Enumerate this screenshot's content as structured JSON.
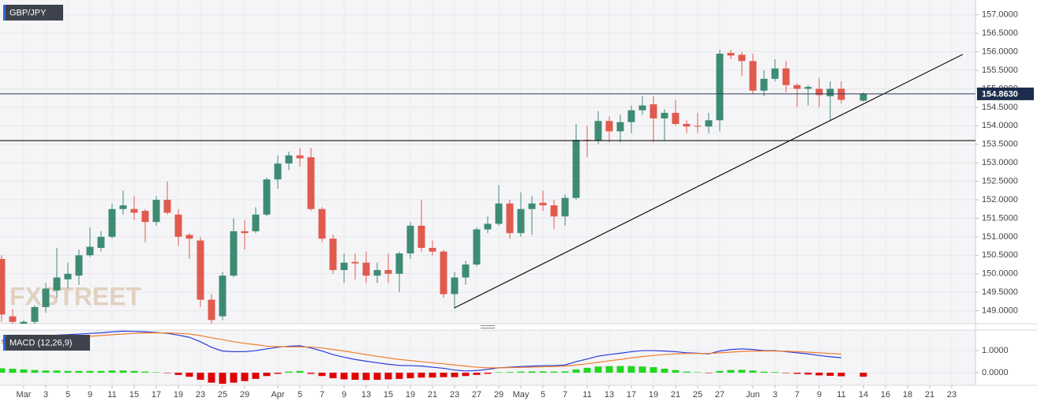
{
  "chart_data": [
    {
      "type": "candlestick",
      "title": "GBP/JPY",
      "watermark": "FXSTREET",
      "categories": [
        null,
        null,
        "Mar",
        null,
        "3",
        null,
        "5",
        null,
        "9",
        null,
        "11",
        null,
        "15",
        null,
        "17",
        null,
        "19",
        null,
        "23",
        null,
        "25",
        null,
        "29",
        null,
        null,
        "Apr",
        null,
        "5",
        null,
        "7",
        null,
        "9",
        null,
        "13",
        null,
        "15",
        null,
        "19",
        null,
        "21",
        null,
        "23",
        null,
        "27",
        null,
        "29",
        null,
        "May",
        null,
        "5",
        null,
        "7",
        null,
        "11",
        null,
        "13",
        null,
        "17",
        null,
        "19",
        null,
        "21",
        null,
        "25",
        null,
        "27",
        null,
        null,
        "Jun",
        null,
        "3",
        null,
        "7",
        null,
        "9",
        null,
        "11",
        null,
        "14",
        null,
        "16",
        null,
        "18",
        null,
        "21",
        null,
        "23",
        null
      ],
      "open": [
        150.4,
        148.85,
        148.55,
        148.7,
        149.1,
        149.55,
        149.85,
        149.95,
        150.5,
        150.7,
        151.0,
        151.75,
        151.75,
        151.7,
        151.4,
        152.0,
        151.6,
        151.05,
        150.9,
        149.3,
        148.85,
        149.95,
        151.15,
        151.15,
        151.6,
        152.55,
        152.98,
        153.2,
        153.15,
        151.75,
        150.95,
        150.1,
        150.32,
        150.3,
        149.95,
        150.1,
        150.0,
        150.55,
        151.3,
        150.7,
        150.6,
        149.45,
        149.9,
        150.25,
        151.2,
        151.35,
        151.9,
        151.1,
        151.75,
        151.92,
        151.85,
        151.55,
        152.05,
        153.62,
        153.6,
        154.13,
        153.85,
        154.1,
        154.42,
        154.58,
        154.2,
        154.35,
        154.05,
        154.0,
        153.98,
        154.15,
        155.97,
        155.92,
        155.75,
        154.95,
        155.27,
        155.55,
        155.1,
        155.0,
        155.0,
        154.8,
        155.0,
        null,
        154.68,
        null,
        null,
        null,
        null,
        null,
        null,
        null,
        null,
        null
      ],
      "high": [
        150.5,
        149.05,
        148.75,
        149.15,
        149.75,
        150.7,
        150.3,
        150.65,
        151.25,
        151.15,
        151.9,
        152.25,
        152.1,
        151.75,
        152.1,
        152.5,
        151.75,
        151.1,
        151.0,
        149.45,
        150.05,
        151.5,
        151.45,
        151.8,
        152.6,
        153.2,
        153.3,
        153.4,
        153.4,
        151.8,
        151.05,
        150.55,
        150.55,
        150.6,
        150.3,
        150.55,
        150.6,
        151.4,
        152.0,
        150.9,
        150.65,
        150.05,
        150.35,
        151.25,
        151.55,
        152.4,
        152.0,
        152.2,
        152.1,
        152.25,
        152.0,
        152.15,
        154.05,
        154.0,
        154.4,
        154.25,
        154.3,
        154.55,
        154.8,
        154.8,
        154.45,
        154.7,
        154.15,
        154.35,
        154.35,
        156.05,
        156.05,
        156.0,
        155.95,
        155.5,
        155.8,
        155.75,
        155.15,
        155.1,
        155.3,
        155.2,
        155.2,
        null,
        154.9,
        null,
        null,
        null,
        null,
        null,
        null,
        null,
        null,
        null
      ],
      "low": [
        148.7,
        148.55,
        148.4,
        148.6,
        148.95,
        149.35,
        149.6,
        149.7,
        150.45,
        150.6,
        150.95,
        151.6,
        151.45,
        150.85,
        151.3,
        151.6,
        150.75,
        150.4,
        149.1,
        148.6,
        148.75,
        149.9,
        150.65,
        151.1,
        151.55,
        152.3,
        152.8,
        152.9,
        151.7,
        150.85,
        150.0,
        149.75,
        149.85,
        149.75,
        149.75,
        149.75,
        149.5,
        150.4,
        150.6,
        150.5,
        149.35,
        149.05,
        149.7,
        150.2,
        151.1,
        151.3,
        150.95,
        151.0,
        151.05,
        151.7,
        151.2,
        151.3,
        152.0,
        153.15,
        153.5,
        153.55,
        153.55,
        153.8,
        154.3,
        153.55,
        153.6,
        154.0,
        153.8,
        153.8,
        153.8,
        153.85,
        155.8,
        155.35,
        154.85,
        154.8,
        155.2,
        154.9,
        154.5,
        154.55,
        154.5,
        154.15,
        154.6,
        null,
        154.65,
        null,
        null,
        null,
        null,
        null,
        null,
        null,
        null,
        null
      ],
      "close": [
        148.9,
        148.7,
        148.7,
        149.1,
        149.6,
        149.9,
        150.0,
        150.5,
        150.73,
        151.0,
        151.75,
        151.85,
        151.65,
        151.4,
        152.0,
        151.65,
        151.0,
        150.95,
        149.3,
        148.75,
        149.95,
        151.15,
        151.1,
        151.6,
        152.55,
        152.98,
        153.2,
        153.12,
        151.75,
        150.95,
        150.1,
        150.3,
        150.28,
        149.95,
        150.1,
        150.0,
        150.55,
        151.3,
        150.7,
        150.6,
        149.45,
        149.9,
        150.25,
        151.2,
        151.35,
        151.9,
        151.1,
        151.75,
        151.9,
        151.85,
        151.55,
        152.05,
        153.62,
        153.6,
        154.13,
        153.85,
        154.1,
        154.42,
        154.55,
        154.2,
        154.35,
        154.05,
        153.98,
        153.98,
        154.15,
        155.95,
        155.9,
        155.75,
        154.95,
        155.27,
        155.55,
        155.1,
        155.0,
        155.05,
        154.83,
        155.0,
        154.7,
        null,
        154.86,
        null,
        null,
        null,
        null,
        null,
        null,
        null,
        null,
        null
      ],
      "up_color": "#3e8b74",
      "down_color": "#e15a4e",
      "ylim": [
        148.65,
        157.4
      ],
      "yticks": [
        {
          "value": 149,
          "label": "149.0000"
        },
        {
          "value": 149.5,
          "label": "149.5000"
        },
        {
          "value": 150,
          "label": "150.0000"
        },
        {
          "value": 150.5,
          "label": "150.5000"
        },
        {
          "value": 151,
          "label": "151.0000"
        },
        {
          "value": 151.5,
          "label": "151.5000"
        },
        {
          "value": 152,
          "label": "152.0000"
        },
        {
          "value": 152.5,
          "label": "152.5000"
        },
        {
          "value": 153,
          "label": "153.0000"
        },
        {
          "value": 153.5,
          "label": "153.5000"
        },
        {
          "value": 154,
          "label": "154.0000"
        },
        {
          "value": 154.5,
          "label": "154.5000"
        },
        {
          "value": 155,
          "label": "155.0000"
        },
        {
          "value": 155.5,
          "label": "155.5000"
        },
        {
          "value": 156,
          "label": "156.0000"
        },
        {
          "value": 156.5,
          "label": "156.5000"
        },
        {
          "value": 157,
          "label": "157.0000"
        }
      ],
      "grid": true,
      "hlines": [
        153.6
      ],
      "last_price": {
        "value": 154.863,
        "label": "154.8630"
      },
      "trendline": {
        "x": [
          41,
          87
        ],
        "y": [
          149.08,
          155.93
        ]
      }
    },
    {
      "type": "macd",
      "title": "MACD (12,26,9)",
      "series": [
        {
          "color": "#2a3adc",
          "values": [
            1.45,
            1.5,
            1.55,
            1.6,
            1.65,
            1.7,
            1.72,
            1.75,
            1.78,
            1.8,
            1.85,
            1.88,
            1.87,
            1.85,
            1.82,
            1.78,
            1.7,
            1.6,
            1.4,
            1.15,
            0.98,
            0.95,
            0.95,
            1.0,
            1.08,
            1.15,
            1.2,
            1.22,
            1.12,
            0.98,
            0.82,
            0.7,
            0.6,
            0.52,
            0.45,
            0.38,
            0.33,
            0.32,
            0.3,
            0.25,
            0.2,
            0.12,
            0.08,
            0.1,
            0.15,
            0.22,
            0.25,
            0.28,
            0.3,
            0.32,
            0.32,
            0.35,
            0.5,
            0.62,
            0.75,
            0.82,
            0.88,
            0.95,
            1.0,
            1.0,
            0.98,
            0.95,
            0.9,
            0.88,
            0.85,
            0.98,
            1.05,
            1.08,
            1.05,
            1.0,
            1.0,
            0.95,
            0.9,
            0.85,
            0.78,
            0.72,
            0.68,
            null,
            0.6,
            null,
            null,
            null,
            null,
            null,
            null,
            null,
            null,
            null
          ]
        },
        {
          "color": "#f07d2c",
          "values": [
            1.35,
            1.38,
            1.42,
            1.45,
            1.5,
            1.55,
            1.58,
            1.62,
            1.65,
            1.68,
            1.72,
            1.75,
            1.78,
            1.8,
            1.8,
            1.8,
            1.78,
            1.75,
            1.68,
            1.58,
            1.5,
            1.4,
            1.33,
            1.27,
            1.2,
            1.18,
            1.17,
            1.17,
            1.16,
            1.12,
            1.05,
            0.98,
            0.9,
            0.82,
            0.74,
            0.67,
            0.6,
            0.55,
            0.5,
            0.45,
            0.4,
            0.35,
            0.3,
            0.25,
            0.22,
            0.22,
            0.23,
            0.24,
            0.25,
            0.27,
            0.28,
            0.3,
            0.35,
            0.4,
            0.47,
            0.54,
            0.6,
            0.67,
            0.73,
            0.78,
            0.82,
            0.85,
            0.87,
            0.87,
            0.87,
            0.9,
            0.93,
            0.96,
            0.98,
            0.98,
            0.98,
            0.97,
            0.95,
            0.93,
            0.9,
            0.87,
            0.84,
            null,
            0.78,
            null,
            null,
            null,
            null,
            null,
            null,
            null,
            null,
            null
          ]
        }
      ],
      "histogram": {
        "up_color": "#1fd81f",
        "down_color": "#e00000",
        "values": [
          0.2,
          0.18,
          0.15,
          0.12,
          0.1,
          0.1,
          0.08,
          0.08,
          0.08,
          0.08,
          0.1,
          0.1,
          0.08,
          0.05,
          0.02,
          -0.02,
          -0.1,
          -0.18,
          -0.32,
          -0.45,
          -0.5,
          -0.45,
          -0.38,
          -0.28,
          -0.15,
          -0.05,
          0.05,
          0.08,
          -0.05,
          -0.15,
          -0.25,
          -0.3,
          -0.32,
          -0.33,
          -0.32,
          -0.3,
          -0.28,
          -0.25,
          -0.22,
          -0.22,
          -0.2,
          -0.2,
          -0.15,
          -0.1,
          -0.05,
          0.02,
          0.03,
          0.05,
          0.06,
          0.06,
          0.05,
          0.06,
          0.15,
          0.22,
          0.28,
          0.3,
          0.3,
          0.3,
          0.28,
          0.25,
          0.18,
          0.12,
          0.05,
          0.02,
          -0.02,
          0.08,
          0.12,
          0.13,
          0.1,
          0.05,
          0.03,
          -0.02,
          -0.05,
          -0.08,
          -0.12,
          -0.14,
          -0.16,
          null,
          -0.18,
          null,
          null,
          null,
          null,
          null,
          null,
          null,
          null,
          null
        ]
      },
      "ylim": [
        -0.57,
        1.93
      ],
      "yticks": [
        {
          "value": 0,
          "label": "0.0000"
        },
        {
          "value": 1,
          "label": "1.0000"
        }
      ],
      "grid": true
    }
  ]
}
